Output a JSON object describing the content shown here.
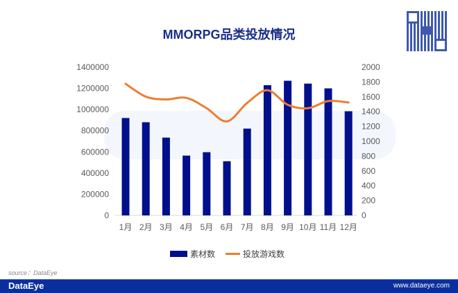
{
  "chart_data": {
    "type": "bar+line",
    "title": "MMORPG品类投放情况",
    "categories": [
      "1月",
      "2月",
      "3月",
      "4月",
      "5月",
      "6月",
      "7月",
      "8月",
      "9月",
      "10月",
      "11月",
      "12月"
    ],
    "series": [
      {
        "name": "素材数",
        "type": "bar",
        "axis": "left",
        "color": "#000f8c",
        "values": [
          920000,
          880000,
          735000,
          565000,
          597000,
          512000,
          820000,
          1230000,
          1272000,
          1245000,
          1200000,
          984000
        ]
      },
      {
        "name": "投放游戏数",
        "type": "line",
        "axis": "right",
        "color": "#ed7d31",
        "values": [
          1776,
          1602,
          1565,
          1586,
          1446,
          1269,
          1518,
          1689,
          1493,
          1446,
          1543,
          1524
        ]
      }
    ],
    "left_axis": {
      "ylim": [
        0,
        1400000
      ],
      "ticks": [
        "0",
        "200000",
        "400000",
        "600000",
        "800000",
        "1000000",
        "1200000",
        "1400000"
      ]
    },
    "right_axis": {
      "ylim": [
        0,
        2000
      ],
      "ticks": [
        "0",
        "200",
        "400",
        "600",
        "800",
        "1000",
        "1200",
        "1400",
        "1600",
        "1800",
        "2000"
      ]
    },
    "grid": false,
    "legend": "bottom"
  },
  "source": "source：DataEye",
  "footer": {
    "brand": "DataEye",
    "url": "www.dataeye.com"
  },
  "watermark": "DataEye"
}
